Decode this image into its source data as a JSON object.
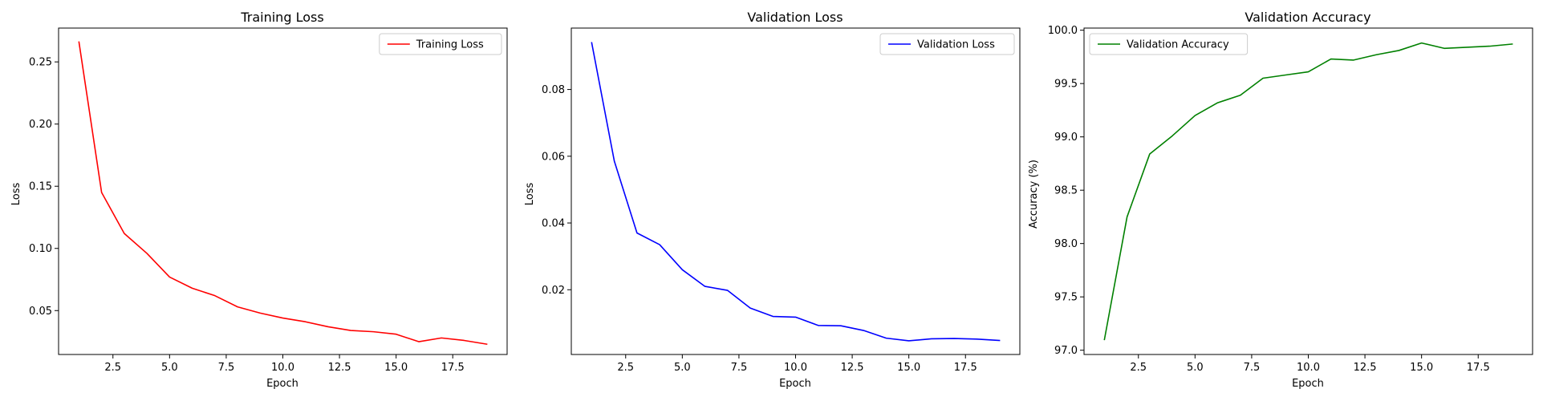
{
  "chart_data": [
    {
      "type": "line",
      "title": "Training Loss",
      "xlabel": "Epoch",
      "ylabel": "Loss",
      "xlim": [
        0.1,
        19.9
      ],
      "ylim": [
        0.0147,
        0.2772
      ],
      "xticks": [
        2.5,
        5.0,
        7.5,
        10.0,
        12.5,
        15.0,
        17.5
      ],
      "xtick_labels": [
        "2.5",
        "5.0",
        "7.5",
        "10.0",
        "12.5",
        "15.0",
        "17.5"
      ],
      "yticks": [
        0.05,
        0.1,
        0.15,
        0.2,
        0.25
      ],
      "ytick_labels": [
        "0.05",
        "0.10",
        "0.15",
        "0.20",
        "0.25"
      ],
      "legend_position": "top-right",
      "series": [
        {
          "name": "Training Loss",
          "color": "#ff0000",
          "x": [
            1,
            2,
            3,
            4,
            5,
            6,
            7,
            8,
            9,
            10,
            11,
            12,
            13,
            14,
            15,
            16,
            17,
            18,
            19
          ],
          "y": [
            0.266,
            0.145,
            0.112,
            0.096,
            0.077,
            0.068,
            0.062,
            0.053,
            0.048,
            0.044,
            0.041,
            0.037,
            0.034,
            0.033,
            0.031,
            0.025,
            0.028,
            0.026,
            0.023
          ]
        }
      ]
    },
    {
      "type": "line",
      "title": "Validation Loss",
      "xlabel": "Epoch",
      "ylabel": "Loss",
      "xlim": [
        0.1,
        19.9
      ],
      "ylim": [
        0.0006,
        0.0984
      ],
      "xticks": [
        2.5,
        5.0,
        7.5,
        10.0,
        12.5,
        15.0,
        17.5
      ],
      "xtick_labels": [
        "2.5",
        "5.0",
        "7.5",
        "10.0",
        "12.5",
        "15.0",
        "17.5"
      ],
      "yticks": [
        0.02,
        0.04,
        0.06,
        0.08
      ],
      "ytick_labels": [
        "0.02",
        "0.04",
        "0.06",
        "0.08"
      ],
      "legend_position": "top-right",
      "series": [
        {
          "name": "Validation Loss",
          "color": "#0000ff",
          "x": [
            1,
            2,
            3,
            4,
            5,
            6,
            7,
            8,
            9,
            10,
            11,
            12,
            13,
            14,
            15,
            16,
            17,
            18,
            19
          ],
          "y": [
            0.094,
            0.0585,
            0.037,
            0.0335,
            0.026,
            0.021,
            0.0198,
            0.0145,
            0.012,
            0.0118,
            0.0093,
            0.0092,
            0.0078,
            0.0055,
            0.0047,
            0.0053,
            0.0054,
            0.0052,
            0.0048
          ]
        }
      ]
    },
    {
      "type": "line",
      "title": "Validation Accuracy",
      "xlabel": "Epoch",
      "ylabel": "Accuracy (%)",
      "xlim": [
        0.1,
        19.9
      ],
      "ylim": [
        96.96,
        100.02
      ],
      "xticks": [
        2.5,
        5.0,
        7.5,
        10.0,
        12.5,
        15.0,
        17.5
      ],
      "xtick_labels": [
        "2.5",
        "5.0",
        "7.5",
        "10.0",
        "12.5",
        "15.0",
        "17.5"
      ],
      "yticks": [
        97.0,
        97.5,
        98.0,
        98.5,
        99.0,
        99.5,
        100.0
      ],
      "ytick_labels": [
        "97.0",
        "97.5",
        "98.0",
        "98.5",
        "99.0",
        "99.5",
        "100.0"
      ],
      "legend_position": "top-left",
      "series": [
        {
          "name": "Validation Accuracy",
          "color": "#008000",
          "x": [
            1,
            2,
            3,
            4,
            5,
            6,
            7,
            8,
            9,
            10,
            11,
            12,
            13,
            14,
            15,
            16,
            17,
            18,
            19
          ],
          "y": [
            97.1,
            98.25,
            98.84,
            99.01,
            99.2,
            99.32,
            99.39,
            99.55,
            99.58,
            99.61,
            99.73,
            99.72,
            99.77,
            99.81,
            99.88,
            99.83,
            99.84,
            99.85,
            99.87
          ]
        }
      ]
    }
  ]
}
